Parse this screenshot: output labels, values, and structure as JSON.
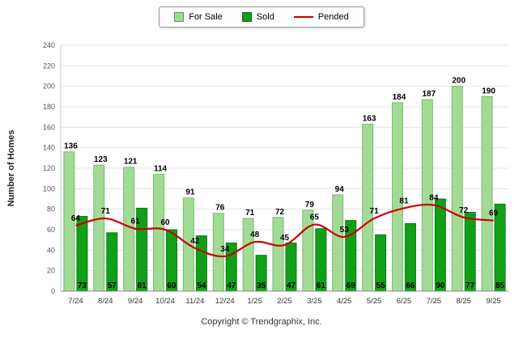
{
  "footer": {
    "copyright": "Copyright © Trendgraphix, Inc."
  },
  "chart_data": {
    "type": "bar",
    "title": "",
    "categories": [
      "7/24",
      "8/24",
      "9/24",
      "10/24",
      "11/24",
      "12/24",
      "1/25",
      "2/25",
      "3/25",
      "4/25",
      "5/25",
      "6/25",
      "7/25",
      "8/25",
      "9/25"
    ],
    "series": [
      {
        "name": "For Sale",
        "type": "bar",
        "color": "#a3da96",
        "border": "#74bd6d",
        "values": [
          136,
          123,
          121,
          114,
          91,
          76,
          71,
          72,
          79,
          94,
          163,
          184,
          187,
          200,
          190
        ]
      },
      {
        "name": "Sold",
        "type": "bar",
        "color": "#0fa018",
        "border": "#0a7d11",
        "values": [
          73,
          57,
          81,
          60,
          54,
          47,
          35,
          47,
          61,
          69,
          55,
          66,
          90,
          77,
          85
        ]
      },
      {
        "name": "Pended",
        "type": "line",
        "color": "#cc0000",
        "border": "#cc0000",
        "values": [
          64,
          71,
          61,
          60,
          42,
          34,
          48,
          45,
          65,
          53,
          71,
          81,
          84,
          72,
          69
        ]
      }
    ],
    "xlabel": "",
    "ylabel": "Number of Homes",
    "ylim": [
      0,
      240
    ],
    "ytick_step": 20,
    "grid": true,
    "legend_position": "top"
  }
}
